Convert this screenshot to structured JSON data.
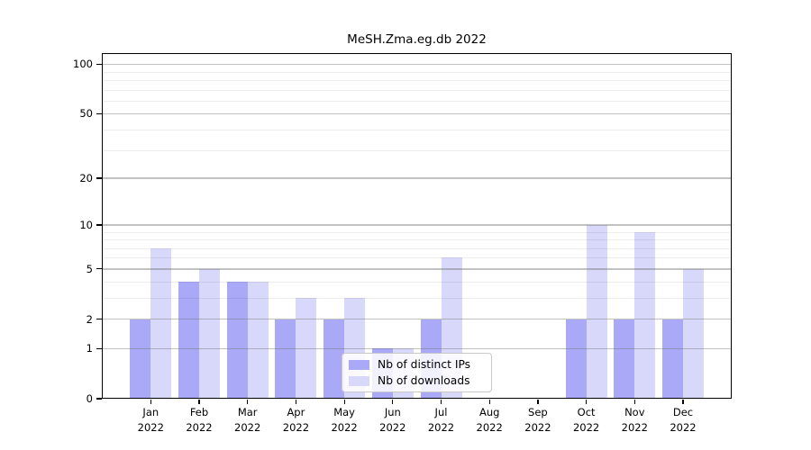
{
  "title": "MeSH.Zma.eg.db 2022",
  "chart_data": {
    "type": "bar",
    "title": "MeSH.Zma.eg.db 2022",
    "categories": [
      "Jan",
      "Feb",
      "Mar",
      "Apr",
      "May",
      "Jun",
      "Jul",
      "Aug",
      "Sep",
      "Oct",
      "Nov",
      "Dec"
    ],
    "x_tick_year": "2022",
    "series": [
      {
        "name": "Nb of distinct IPs",
        "color": "#a9a9f8",
        "values": [
          2,
          4,
          4,
          2,
          2,
          1,
          2,
          0,
          0,
          2,
          2,
          2
        ]
      },
      {
        "name": "Nb of downloads",
        "color": "#d8d8fa",
        "values": [
          7,
          5,
          4,
          3,
          3,
          1,
          6,
          0,
          0,
          10,
          9,
          5
        ]
      }
    ],
    "y_scale": "log1p",
    "ylim": [
      0,
      100
    ],
    "y_major_ticks": [
      100,
      50,
      20,
      10,
      5,
      2,
      1,
      0
    ],
    "y_minor_ticks": [
      3,
      4,
      6,
      7,
      8,
      9,
      30,
      40,
      60,
      70,
      80,
      90
    ],
    "grid": true,
    "legend_position": "bottom-center"
  }
}
